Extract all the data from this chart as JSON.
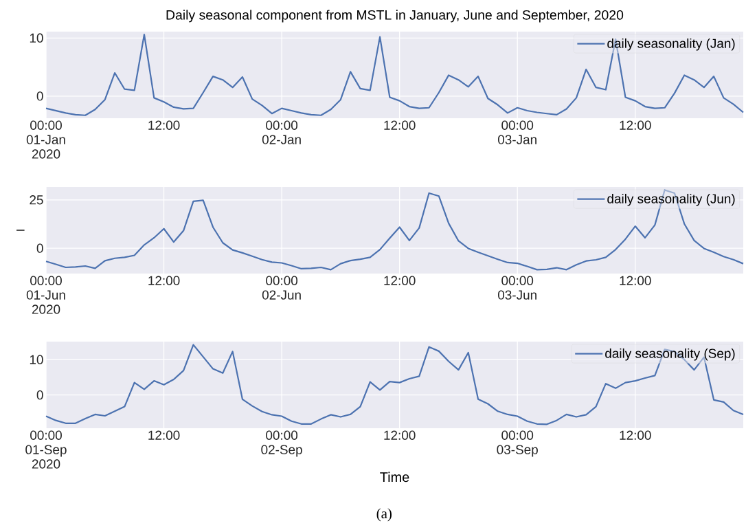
{
  "chart_data": [
    {
      "type": "line",
      "title": "Daily seasonal component from MSTL in January, June and September, 2020",
      "x": [
        "2020-01-01T00:00",
        "2020-01-01T01:00",
        "2020-01-01T02:00",
        "2020-01-01T03:00",
        "2020-01-01T04:00",
        "2020-01-01T05:00",
        "2020-01-01T06:00",
        "2020-01-01T07:00",
        "2020-01-01T08:00",
        "2020-01-01T09:00",
        "2020-01-01T10:00",
        "2020-01-01T11:00",
        "2020-01-01T12:00",
        "2020-01-01T13:00",
        "2020-01-01T14:00",
        "2020-01-01T15:00",
        "2020-01-01T16:00",
        "2020-01-01T17:00",
        "2020-01-01T18:00",
        "2020-01-01T19:00",
        "2020-01-01T20:00",
        "2020-01-01T21:00",
        "2020-01-01T22:00",
        "2020-01-01T23:00",
        "2020-01-02T00:00",
        "2020-01-02T01:00",
        "2020-01-02T02:00",
        "2020-01-02T03:00",
        "2020-01-02T04:00",
        "2020-01-02T05:00",
        "2020-01-02T06:00",
        "2020-01-02T07:00",
        "2020-01-02T08:00",
        "2020-01-02T09:00",
        "2020-01-02T10:00",
        "2020-01-02T11:00",
        "2020-01-02T12:00",
        "2020-01-02T13:00",
        "2020-01-02T14:00",
        "2020-01-02T15:00",
        "2020-01-02T16:00",
        "2020-01-02T17:00",
        "2020-01-02T18:00",
        "2020-01-02T19:00",
        "2020-01-02T20:00",
        "2020-01-02T21:00",
        "2020-01-02T22:00",
        "2020-01-02T23:00",
        "2020-01-03T00:00",
        "2020-01-03T01:00",
        "2020-01-03T02:00",
        "2020-01-03T03:00",
        "2020-01-03T04:00",
        "2020-01-03T05:00",
        "2020-01-03T06:00",
        "2020-01-03T07:00",
        "2020-01-03T08:00",
        "2020-01-03T09:00",
        "2020-01-03T10:00",
        "2020-01-03T11:00",
        "2020-01-03T12:00",
        "2020-01-03T13:00",
        "2020-01-03T14:00",
        "2020-01-03T15:00",
        "2020-01-03T16:00",
        "2020-01-03T17:00",
        "2020-01-03T18:00",
        "2020-01-03T19:00",
        "2020-01-03T20:00",
        "2020-01-03T21:00",
        "2020-01-03T22:00",
        "2020-01-03T23:00"
      ],
      "series": [
        {
          "name": "daily seasonality (Jan)",
          "color": "#4c72b0",
          "values": [
            -2.1,
            -2.5,
            -2.9,
            -3.2,
            -3.3,
            -2.3,
            -0.6,
            4.0,
            1.2,
            1.0,
            10.6,
            -0.3,
            -1.0,
            -1.9,
            -2.2,
            -2.1,
            0.6,
            3.4,
            2.8,
            1.5,
            3.3,
            -0.5,
            -1.6,
            -3.0,
            -2.1,
            -2.5,
            -2.9,
            -3.2,
            -3.3,
            -2.3,
            -0.6,
            4.2,
            1.3,
            1.0,
            10.2,
            -0.2,
            -0.8,
            -1.8,
            -2.1,
            -2.0,
            0.6,
            3.6,
            2.8,
            1.6,
            3.4,
            -0.4,
            -1.5,
            -2.9,
            -2.0,
            -2.5,
            -2.8,
            -3.0,
            -3.2,
            -2.2,
            -0.3,
            4.6,
            1.5,
            1.1,
            9.8,
            -0.2,
            -0.8,
            -1.8,
            -2.1,
            -2.0,
            0.5,
            3.6,
            2.8,
            1.5,
            3.4,
            -0.3,
            -1.4,
            -2.8
          ]
        }
      ],
      "xlim": [
        "2020-01-01T00:00",
        "2020-01-03T23:00"
      ],
      "ylim": [
        -3.8,
        11.1
      ],
      "yticks": [
        0,
        10
      ],
      "xticks": [
        {
          "value": "2020-01-01T00:00",
          "label": "00:00 01-Jan 2020"
        },
        {
          "value": "2020-01-01T12:00",
          "label": "12:00"
        },
        {
          "value": "2020-01-02T00:00",
          "label": "00:00 02-Jan"
        },
        {
          "value": "2020-01-02T12:00",
          "label": "12:00"
        },
        {
          "value": "2020-01-03T00:00",
          "label": "00:00 03-Jan"
        },
        {
          "value": "2020-01-03T12:00",
          "label": "12:00"
        }
      ],
      "grid": true,
      "legend": "top right"
    },
    {
      "type": "line",
      "ylabel": "l",
      "x": [
        "2020-06-01T00:00",
        "2020-06-01T01:00",
        "2020-06-01T02:00",
        "2020-06-01T03:00",
        "2020-06-01T04:00",
        "2020-06-01T05:00",
        "2020-06-01T06:00",
        "2020-06-01T07:00",
        "2020-06-01T08:00",
        "2020-06-01T09:00",
        "2020-06-01T10:00",
        "2020-06-01T11:00",
        "2020-06-01T12:00",
        "2020-06-01T13:00",
        "2020-06-01T14:00",
        "2020-06-01T15:00",
        "2020-06-01T16:00",
        "2020-06-01T17:00",
        "2020-06-01T18:00",
        "2020-06-01T19:00",
        "2020-06-01T20:00",
        "2020-06-01T21:00",
        "2020-06-01T22:00",
        "2020-06-01T23:00",
        "2020-06-02T00:00",
        "2020-06-02T01:00",
        "2020-06-02T02:00",
        "2020-06-02T03:00",
        "2020-06-02T04:00",
        "2020-06-02T05:00",
        "2020-06-02T06:00",
        "2020-06-02T07:00",
        "2020-06-02T08:00",
        "2020-06-02T09:00",
        "2020-06-02T10:00",
        "2020-06-02T11:00",
        "2020-06-02T12:00",
        "2020-06-02T13:00",
        "2020-06-02T14:00",
        "2020-06-02T15:00",
        "2020-06-02T16:00",
        "2020-06-02T17:00",
        "2020-06-02T18:00",
        "2020-06-02T19:00",
        "2020-06-02T20:00",
        "2020-06-02T21:00",
        "2020-06-02T22:00",
        "2020-06-02T23:00",
        "2020-06-03T00:00",
        "2020-06-03T01:00",
        "2020-06-03T02:00",
        "2020-06-03T03:00",
        "2020-06-03T04:00",
        "2020-06-03T05:00",
        "2020-06-03T06:00",
        "2020-06-03T07:00",
        "2020-06-03T08:00",
        "2020-06-03T09:00",
        "2020-06-03T10:00",
        "2020-06-03T11:00",
        "2020-06-03T12:00",
        "2020-06-03T13:00",
        "2020-06-03T14:00",
        "2020-06-03T15:00",
        "2020-06-03T16:00",
        "2020-06-03T17:00",
        "2020-06-03T18:00",
        "2020-06-03T19:00",
        "2020-06-03T20:00",
        "2020-06-03T21:00",
        "2020-06-03T22:00",
        "2020-06-03T23:00"
      ],
      "series": [
        {
          "name": "daily seasonality (Jun)",
          "color": "#4c72b0",
          "values": [
            -6.8,
            -8.3,
            -9.9,
            -9.7,
            -9.2,
            -10.4,
            -6.5,
            -5.2,
            -4.7,
            -3.7,
            1.7,
            5.4,
            10.1,
            3.2,
            9.1,
            24.3,
            24.8,
            10.9,
            2.8,
            -0.9,
            -2.4,
            -4.1,
            -5.9,
            -7.2,
            -7.6,
            -9.0,
            -10.6,
            -10.4,
            -9.9,
            -11.1,
            -8.0,
            -6.4,
            -5.7,
            -4.7,
            -0.7,
            5.2,
            10.9,
            4.0,
            10.5,
            28.5,
            27.0,
            12.9,
            3.8,
            -0.1,
            -2.1,
            -3.9,
            -5.7,
            -7.4,
            -7.8,
            -9.4,
            -11.1,
            -10.9,
            -10.1,
            -11.1,
            -8.6,
            -6.6,
            -6.0,
            -4.7,
            -0.7,
            4.7,
            11.4,
            5.4,
            12.0,
            30.1,
            28.5,
            12.6,
            4.0,
            -0.1,
            -2.1,
            -4.3,
            -5.9,
            -8.0
          ]
        }
      ],
      "xlim": [
        "2020-06-01T00:00",
        "2020-06-03T23:00"
      ],
      "ylim": [
        -13.1,
        31.7
      ],
      "yticks": [
        0,
        25
      ],
      "xticks": [
        {
          "value": "2020-06-01T00:00",
          "label": "00:00 01-Jun 2020"
        },
        {
          "value": "2020-06-01T12:00",
          "label": "12:00"
        },
        {
          "value": "2020-06-02T00:00",
          "label": "00:00 02-Jun"
        },
        {
          "value": "2020-06-02T12:00",
          "label": "12:00"
        },
        {
          "value": "2020-06-03T00:00",
          "label": "00:00 03-Jun"
        },
        {
          "value": "2020-06-03T12:00",
          "label": "12:00"
        }
      ],
      "grid": true,
      "legend": "top right"
    },
    {
      "type": "line",
      "xlabel": "Time",
      "annotations": [
        "(a)"
      ],
      "x": [
        "2020-09-01T00:00",
        "2020-09-01T01:00",
        "2020-09-01T02:00",
        "2020-09-01T03:00",
        "2020-09-01T04:00",
        "2020-09-01T05:00",
        "2020-09-01T06:00",
        "2020-09-01T07:00",
        "2020-09-01T08:00",
        "2020-09-01T09:00",
        "2020-09-01T10:00",
        "2020-09-01T11:00",
        "2020-09-01T12:00",
        "2020-09-01T13:00",
        "2020-09-01T14:00",
        "2020-09-01T15:00",
        "2020-09-01T16:00",
        "2020-09-01T17:00",
        "2020-09-01T18:00",
        "2020-09-01T19:00",
        "2020-09-01T20:00",
        "2020-09-01T21:00",
        "2020-09-01T22:00",
        "2020-09-01T23:00",
        "2020-09-02T00:00",
        "2020-09-02T01:00",
        "2020-09-02T02:00",
        "2020-09-02T03:00",
        "2020-09-02T04:00",
        "2020-09-02T05:00",
        "2020-09-02T06:00",
        "2020-09-02T07:00",
        "2020-09-02T08:00",
        "2020-09-02T09:00",
        "2020-09-02T10:00",
        "2020-09-02T11:00",
        "2020-09-02T12:00",
        "2020-09-02T13:00",
        "2020-09-02T14:00",
        "2020-09-02T15:00",
        "2020-09-02T16:00",
        "2020-09-02T17:00",
        "2020-09-02T18:00",
        "2020-09-02T19:00",
        "2020-09-02T20:00",
        "2020-09-02T21:00",
        "2020-09-02T22:00",
        "2020-09-02T23:00",
        "2020-09-03T00:00",
        "2020-09-03T01:00",
        "2020-09-03T02:00",
        "2020-09-03T03:00",
        "2020-09-03T04:00",
        "2020-09-03T05:00",
        "2020-09-03T06:00",
        "2020-09-03T07:00",
        "2020-09-03T08:00",
        "2020-09-03T09:00",
        "2020-09-03T10:00",
        "2020-09-03T11:00",
        "2020-09-03T12:00",
        "2020-09-03T13:00",
        "2020-09-03T14:00",
        "2020-09-03T15:00",
        "2020-09-03T16:00",
        "2020-09-03T17:00",
        "2020-09-03T18:00",
        "2020-09-03T19:00",
        "2020-09-03T20:00",
        "2020-09-03T21:00",
        "2020-09-03T22:00",
        "2020-09-03T23:00"
      ],
      "series": [
        {
          "name": "daily seasonality (Sep)",
          "color": "#4c72b0",
          "values": [
            -6.0,
            -7.2,
            -8.0,
            -8.0,
            -6.7,
            -5.5,
            -5.9,
            -4.6,
            -3.3,
            3.5,
            1.6,
            4.0,
            2.9,
            4.4,
            6.9,
            14.2,
            10.8,
            7.4,
            6.2,
            12.3,
            -1.2,
            -3.1,
            -4.7,
            -5.6,
            -6.0,
            -7.4,
            -8.2,
            -8.2,
            -6.8,
            -5.6,
            -6.2,
            -5.5,
            -3.3,
            3.7,
            1.4,
            3.8,
            3.5,
            4.6,
            5.3,
            13.6,
            12.4,
            9.5,
            7.1,
            12.0,
            -1.2,
            -2.5,
            -4.6,
            -5.5,
            -6.0,
            -7.4,
            -8.2,
            -8.3,
            -7.2,
            -5.5,
            -6.2,
            -5.6,
            -3.3,
            3.2,
            1.9,
            3.5,
            4.0,
            4.8,
            5.5,
            12.9,
            12.3,
            10.0,
            7.1,
            10.7,
            -1.4,
            -2.0,
            -4.4,
            -5.5
          ]
        }
      ],
      "xlim": [
        "2020-09-01T00:00",
        "2020-09-03T23:00"
      ],
      "ylim": [
        -9.4,
        15.1
      ],
      "yticks": [
        0,
        10
      ],
      "xticks": [
        {
          "value": "2020-09-01T00:00",
          "label": "00:00 01-Sep 2020"
        },
        {
          "value": "2020-09-01T12:00",
          "label": "12:00"
        },
        {
          "value": "2020-09-02T00:00",
          "label": "00:00 02-Sep"
        },
        {
          "value": "2020-09-02T12:00",
          "label": "12:00"
        },
        {
          "value": "2020-09-03T00:00",
          "label": "00:00 03-Sep"
        },
        {
          "value": "2020-09-03T12:00",
          "label": "12:00"
        }
      ],
      "grid": true,
      "legend": "top right"
    }
  ]
}
